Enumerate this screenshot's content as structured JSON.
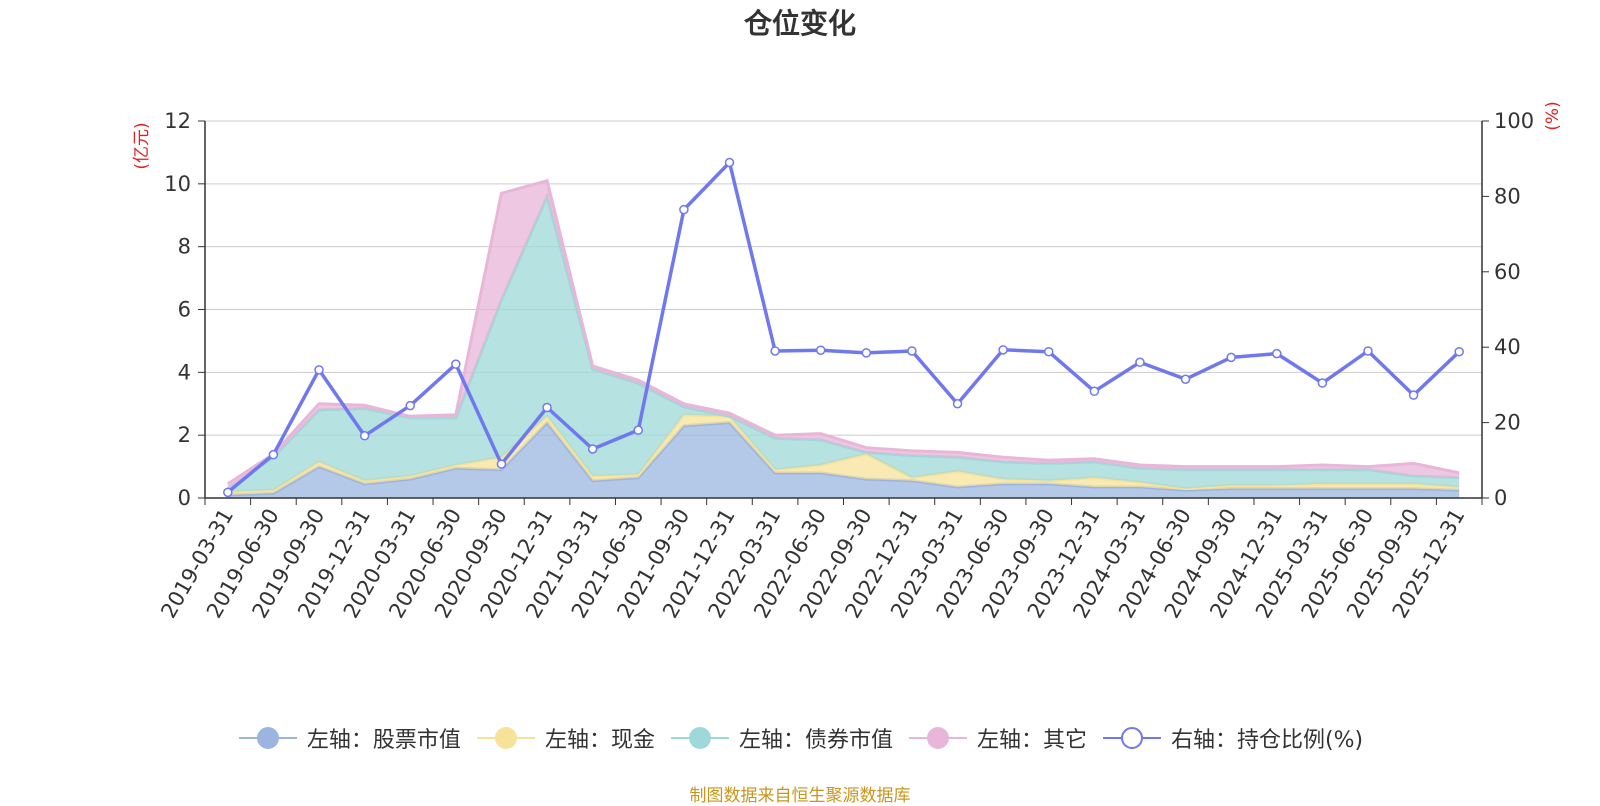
{
  "chart_data": {
    "type": "area",
    "title": "仓位变化",
    "left_axis_unit": "(亿元)",
    "right_axis_unit": "(%)",
    "categories": [
      "2019-03-31",
      "2019-06-30",
      "2019-09-30",
      "2019-12-31",
      "2020-03-31",
      "2020-06-30",
      "2020-09-30",
      "2020-12-31",
      "2021-03-31",
      "2021-06-30",
      "2021-09-30",
      "2021-12-31",
      "2022-03-31",
      "2022-06-30",
      "2022-09-30",
      "2022-12-31",
      "2023-03-31",
      "2023-06-30",
      "2023-09-30",
      "2023-12-31",
      "2024-03-31",
      "2024-06-30",
      "2024-09-30",
      "2024-12-31",
      "2025-03-31",
      "2025-06-30",
      "2025-09-30",
      "2025-12-31"
    ],
    "left_ylim": [
      0,
      12
    ],
    "left_ticks": [
      0,
      2,
      4,
      6,
      8,
      10,
      12
    ],
    "right_ylim": [
      0,
      100
    ],
    "right_ticks": [
      0,
      20,
      40,
      60,
      80,
      100
    ],
    "series": [
      {
        "name": "左轴：股票市值",
        "axis": "left",
        "stack": true,
        "color": "#9bb5e0",
        "values": [
          0.1,
          0.15,
          1.0,
          0.45,
          0.6,
          0.95,
          0.9,
          2.4,
          0.55,
          0.65,
          2.3,
          2.4,
          0.8,
          0.8,
          0.6,
          0.55,
          0.35,
          0.45,
          0.45,
          0.35,
          0.35,
          0.25,
          0.3,
          0.3,
          0.3,
          0.3,
          0.3,
          0.25
        ]
      },
      {
        "name": "左轴：现金",
        "axis": "left",
        "stack": true,
        "color": "#f7e29a",
        "values": [
          0.1,
          0.1,
          0.15,
          0.1,
          0.1,
          0.1,
          0.4,
          0.2,
          0.15,
          0.1,
          0.35,
          0.2,
          0.1,
          0.25,
          0.8,
          0.1,
          0.5,
          0.15,
          0.1,
          0.3,
          0.15,
          0.05,
          0.1,
          0.1,
          0.15,
          0.15,
          0.15,
          0.1
        ]
      },
      {
        "name": "左轴：债券市值",
        "axis": "left",
        "stack": true,
        "color": "#9fd8d8",
        "values": [
          0.1,
          1.05,
          1.65,
          2.3,
          1.85,
          1.5,
          5.0,
          7.0,
          3.4,
          2.9,
          0.25,
          0.0,
          1.0,
          0.8,
          0.05,
          0.7,
          0.45,
          0.55,
          0.55,
          0.5,
          0.45,
          0.6,
          0.5,
          0.5,
          0.45,
          0.45,
          0.25,
          0.3
        ]
      },
      {
        "name": "左轴：其它",
        "axis": "left",
        "stack": true,
        "color": "#e8b6d8",
        "values": [
          0.15,
          0.1,
          0.2,
          0.1,
          0.05,
          0.1,
          3.4,
          0.5,
          0.1,
          0.1,
          0.1,
          0.1,
          0.1,
          0.2,
          0.15,
          0.15,
          0.15,
          0.15,
          0.1,
          0.1,
          0.1,
          0.1,
          0.1,
          0.1,
          0.15,
          0.1,
          0.4,
          0.15
        ]
      },
      {
        "name": "右轴：持仓比例(%)",
        "axis": "right",
        "stack": false,
        "color": "#7078ee",
        "values": [
          1.5,
          11.5,
          34,
          16.5,
          24.5,
          35.5,
          9,
          24,
          13,
          18,
          76.5,
          89,
          39,
          39.2,
          38.5,
          39,
          25,
          39.3,
          38.8,
          28.3,
          36,
          31.5,
          37.3,
          38.3,
          30.5,
          39,
          27.3,
          38.8
        ]
      }
    ]
  },
  "source_note": "制图数据来自恒生聚源数据库"
}
